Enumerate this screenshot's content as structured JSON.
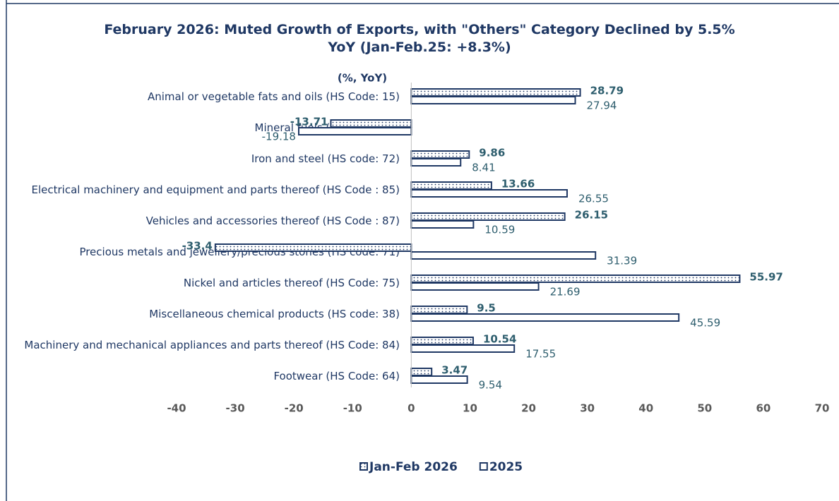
{
  "chart_data": {
    "type": "bar",
    "orientation": "horizontal",
    "title": "February 2026: Muted Growth of Exports,  with \"Others\" Category Declined by 5.5% YoY (Jan-Feb.25: +8.3%)",
    "axis_label": "(%, YoY)",
    "categories": [
      "Animal or vegetable fats and oils (HS Code: 15)",
      "Mineral fuels (HS Code: 27)",
      "Iron and steel (HS code: 72)",
      "Electrical machinery and equipment and parts thereof (HS Code : 85)",
      "Vehicles and accessories thereof (HS Code : 87)",
      "Precious metals  and jewellery/precious stones (HS code: 71)",
      "Nickel and articles thereof (HS Code: 75)",
      "Miscellaneous chemical products (HS code: 38)",
      "Machinery and mechanical appliances and parts thereof (HS Code: 84)",
      "Footwear (HS Code: 64)"
    ],
    "series": [
      {
        "name": "Jan-Feb 2026",
        "color": "#1f3864",
        "values": [
          28.79,
          -13.71,
          9.86,
          13.66,
          26.15,
          -33.4,
          55.97,
          9.5,
          10.54,
          3.47
        ]
      },
      {
        "name": "2025",
        "color": "#1f3864",
        "values": [
          27.94,
          -19.18,
          8.41,
          26.55,
          10.59,
          31.39,
          21.69,
          45.59,
          17.55,
          9.54
        ]
      }
    ],
    "xlim": [
      -40,
      70
    ],
    "xticks": [
      -40,
      -30,
      -20,
      -10,
      0,
      10,
      20,
      30,
      40,
      50,
      60,
      70
    ],
    "legend": "bottom"
  }
}
